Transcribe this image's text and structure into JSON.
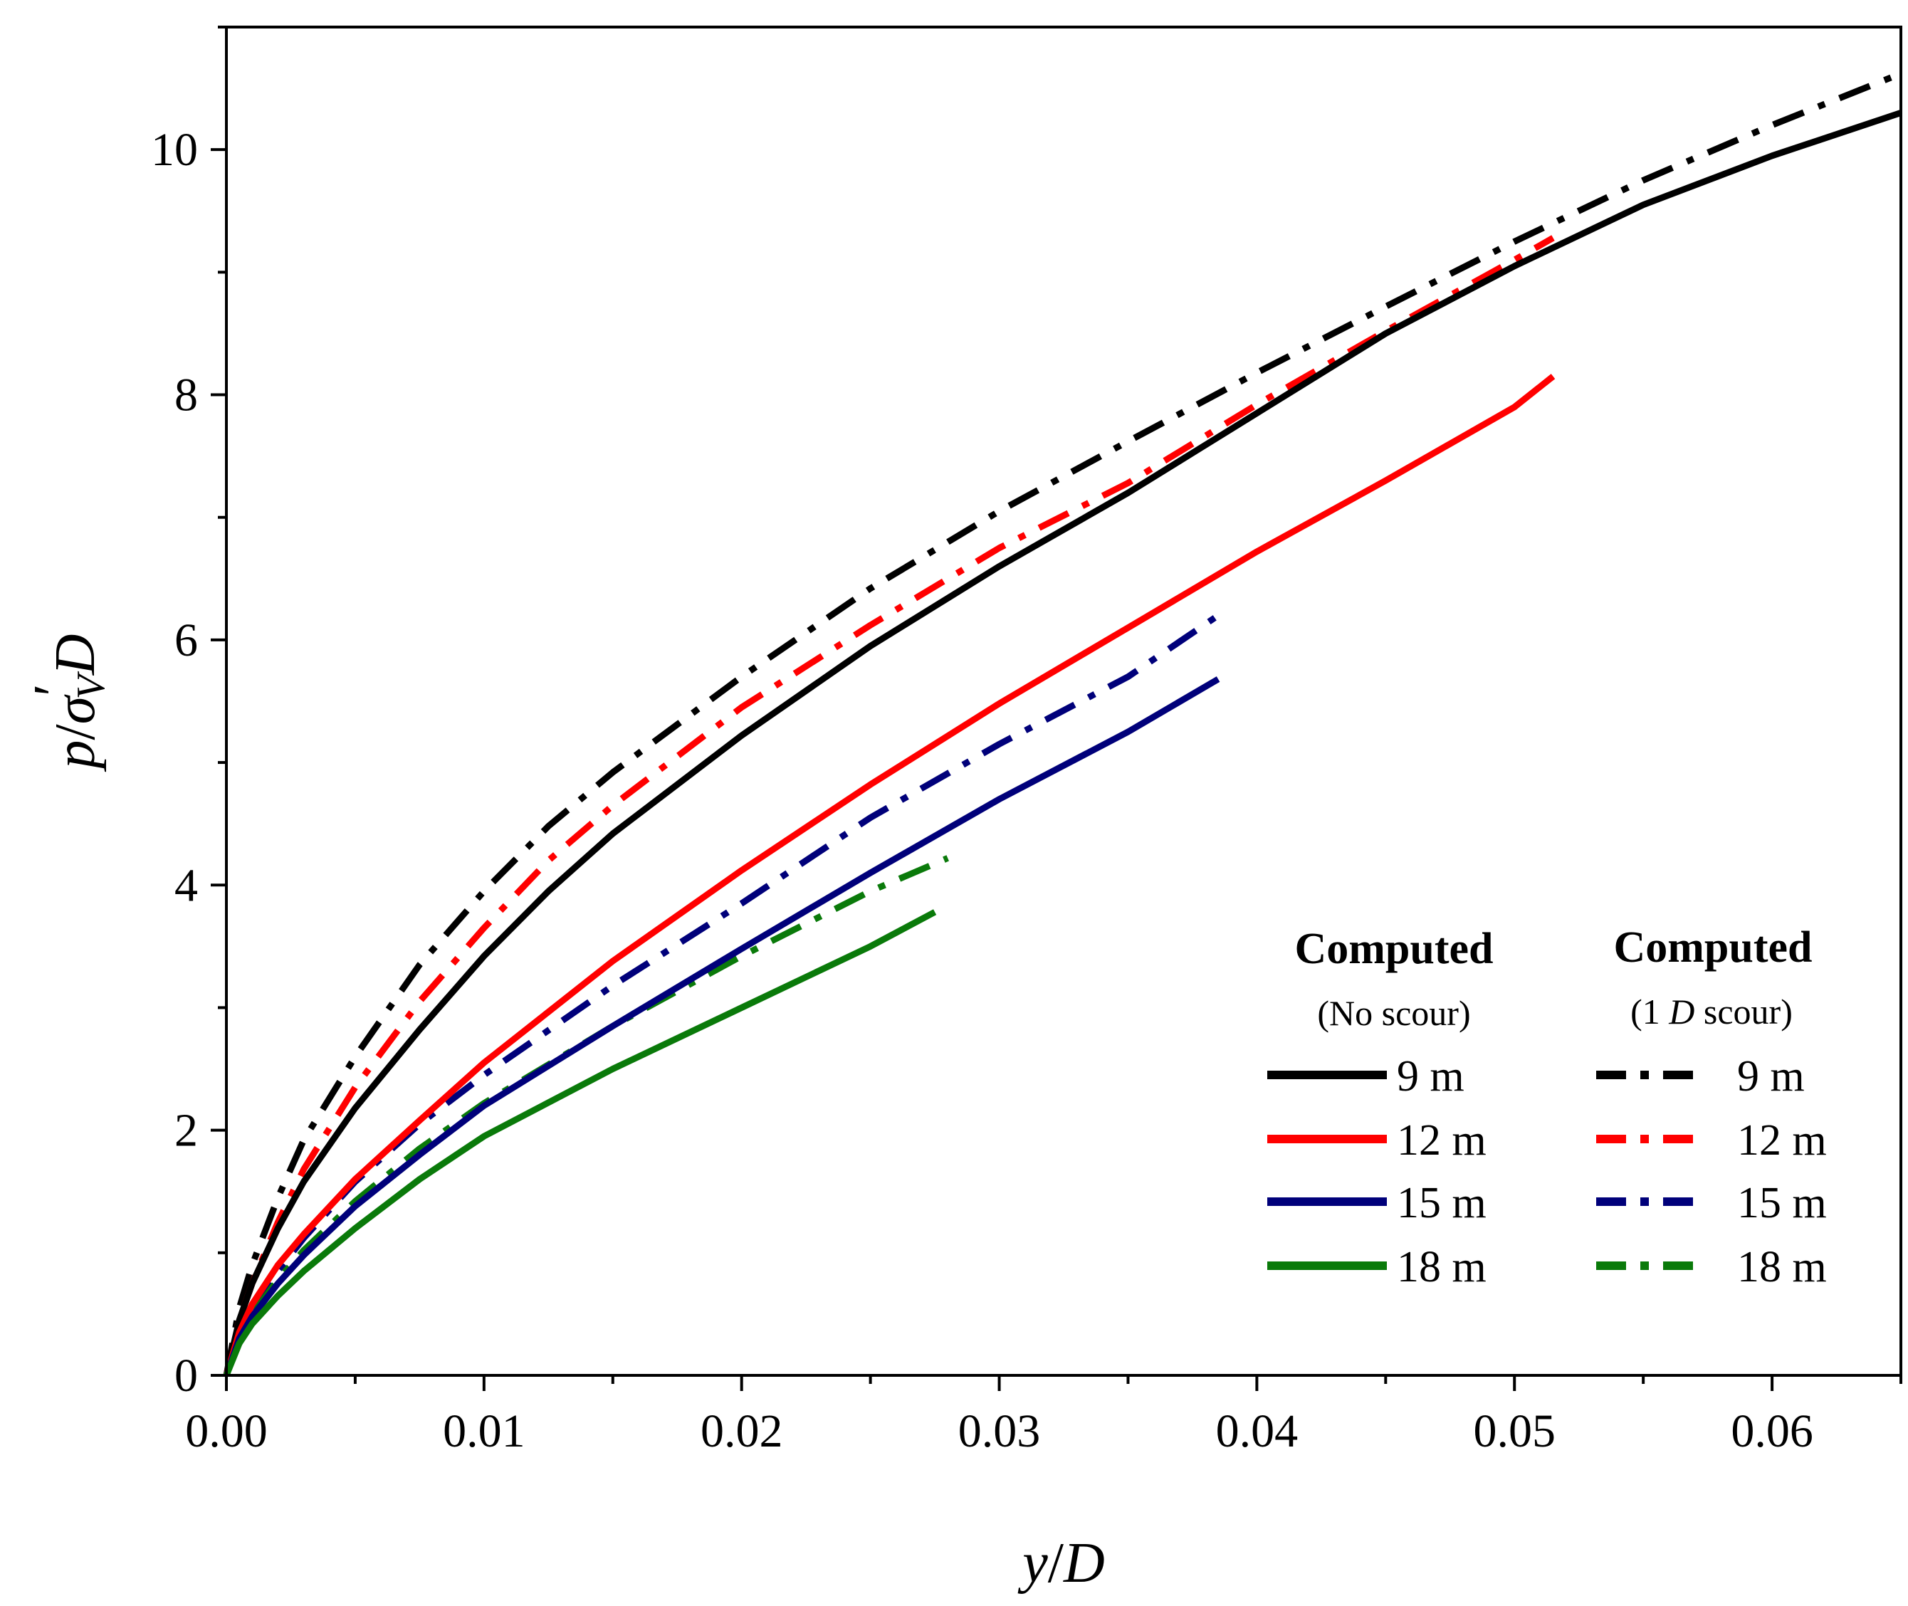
{
  "chart_data": {
    "type": "line",
    "title": "",
    "xlabel": "y/D",
    "ylabel": "p/σ′V D",
    "ylabel_parts": {
      "p": "p",
      "slash": "/",
      "sigma": "σ",
      "prime": "′",
      "sub": "V",
      "D": "D"
    },
    "xlabel_parts": {
      "y": "y",
      "slash": "/",
      "D": "D"
    },
    "xlim": [
      0,
      0.065
    ],
    "ylim": [
      0,
      11
    ],
    "x_ticks": [
      0,
      0.01,
      0.02,
      0.03,
      0.04,
      0.05,
      0.06
    ],
    "x_tick_labels": [
      "0.00",
      "0.01",
      "0.02",
      "0.03",
      "0.04",
      "0.05",
      "0.06"
    ],
    "y_ticks": [
      0,
      2,
      4,
      6,
      8,
      10
    ],
    "y_tick_labels": [
      "0",
      "2",
      "4",
      "6",
      "8",
      "10"
    ],
    "grid": false,
    "legend_position": "lower-right",
    "legend": {
      "group1": {
        "heading": "Computed",
        "subheading": "(No scour)"
      },
      "group2": {
        "heading": "Computed",
        "subheading_prefix": "(1 ",
        "subheading_italic": "D",
        "subheading_suffix": " scour)"
      }
    },
    "series": [
      {
        "name": "9 m",
        "group": "No scour",
        "style": "solid",
        "color": "#000000",
        "x": [
          0,
          0.0005,
          0.001,
          0.002,
          0.003,
          0.005,
          0.0075,
          0.01,
          0.0125,
          0.015,
          0.02,
          0.025,
          0.03,
          0.035,
          0.04,
          0.045,
          0.05,
          0.055,
          0.06,
          0.065
        ],
        "y": [
          0,
          0.45,
          0.75,
          1.2,
          1.58,
          2.18,
          2.82,
          3.42,
          3.95,
          4.42,
          5.22,
          5.95,
          6.6,
          7.2,
          7.85,
          8.5,
          9.05,
          9.55,
          9.95,
          10.3
        ]
      },
      {
        "name": "12 m",
        "group": "No scour",
        "style": "solid",
        "color": "#ff0000",
        "x": [
          0,
          0.0005,
          0.001,
          0.002,
          0.003,
          0.005,
          0.0075,
          0.01,
          0.015,
          0.02,
          0.025,
          0.03,
          0.035,
          0.04,
          0.045,
          0.05,
          0.0515
        ],
        "y": [
          0,
          0.35,
          0.58,
          0.9,
          1.15,
          1.6,
          2.08,
          2.55,
          3.38,
          4.12,
          4.82,
          5.48,
          6.1,
          6.72,
          7.3,
          7.9,
          8.15
        ]
      },
      {
        "name": "15 m",
        "group": "No scour",
        "style": "solid",
        "color": "#00007a",
        "x": [
          0,
          0.0005,
          0.001,
          0.002,
          0.003,
          0.005,
          0.0075,
          0.01,
          0.015,
          0.02,
          0.025,
          0.03,
          0.035,
          0.0385
        ],
        "y": [
          0,
          0.3,
          0.48,
          0.75,
          0.98,
          1.38,
          1.8,
          2.2,
          2.85,
          3.48,
          4.1,
          4.7,
          5.25,
          5.68
        ]
      },
      {
        "name": "18 m",
        "group": "No scour",
        "style": "solid",
        "color": "#0a7a0a",
        "x": [
          0,
          0.0005,
          0.001,
          0.002,
          0.003,
          0.005,
          0.0075,
          0.01,
          0.015,
          0.02,
          0.025,
          0.0275
        ],
        "y": [
          0,
          0.26,
          0.42,
          0.65,
          0.85,
          1.2,
          1.6,
          1.95,
          2.5,
          3.0,
          3.5,
          3.78
        ]
      },
      {
        "name": "9 m",
        "group": "1 D scour",
        "style": "dashdot",
        "color": "#000000",
        "x": [
          0,
          0.0005,
          0.001,
          0.002,
          0.003,
          0.005,
          0.0075,
          0.01,
          0.0125,
          0.015,
          0.02,
          0.025,
          0.03,
          0.035,
          0.04,
          0.045,
          0.05,
          0.055,
          0.06,
          0.065
        ],
        "y": [
          0,
          0.55,
          0.9,
          1.45,
          1.92,
          2.6,
          3.35,
          3.95,
          4.48,
          4.92,
          5.7,
          6.42,
          7.05,
          7.62,
          8.18,
          8.72,
          9.25,
          9.75,
          10.2,
          10.62
        ]
      },
      {
        "name": "12 m",
        "group": "1 D scour",
        "style": "dashdot",
        "color": "#ff0000",
        "x": [
          0,
          0.0005,
          0.001,
          0.002,
          0.003,
          0.005,
          0.0075,
          0.01,
          0.0125,
          0.015,
          0.02,
          0.025,
          0.03,
          0.035,
          0.04,
          0.045,
          0.05,
          0.0515
        ],
        "y": [
          0,
          0.45,
          0.75,
          1.25,
          1.68,
          2.35,
          3.05,
          3.65,
          4.2,
          4.65,
          5.45,
          6.12,
          6.75,
          7.28,
          7.92,
          8.52,
          9.1,
          9.28
        ]
      },
      {
        "name": "15 m",
        "group": "1 D scour",
        "style": "dashdot",
        "color": "#00007a",
        "x": [
          0,
          0.0005,
          0.001,
          0.002,
          0.003,
          0.005,
          0.0075,
          0.01,
          0.015,
          0.02,
          0.025,
          0.03,
          0.035,
          0.0385
        ],
        "y": [
          0,
          0.33,
          0.55,
          0.85,
          1.12,
          1.58,
          2.05,
          2.45,
          3.18,
          3.85,
          4.55,
          5.15,
          5.7,
          6.2
        ]
      },
      {
        "name": "18 m",
        "group": "1 D scour",
        "style": "dashdot",
        "color": "#0a7a0a",
        "x": [
          0,
          0.0005,
          0.001,
          0.002,
          0.003,
          0.005,
          0.0075,
          0.01,
          0.015,
          0.02,
          0.025,
          0.028
        ],
        "y": [
          0,
          0.3,
          0.5,
          0.78,
          1.02,
          1.42,
          1.85,
          2.22,
          2.85,
          3.42,
          3.95,
          4.22
        ]
      }
    ]
  }
}
